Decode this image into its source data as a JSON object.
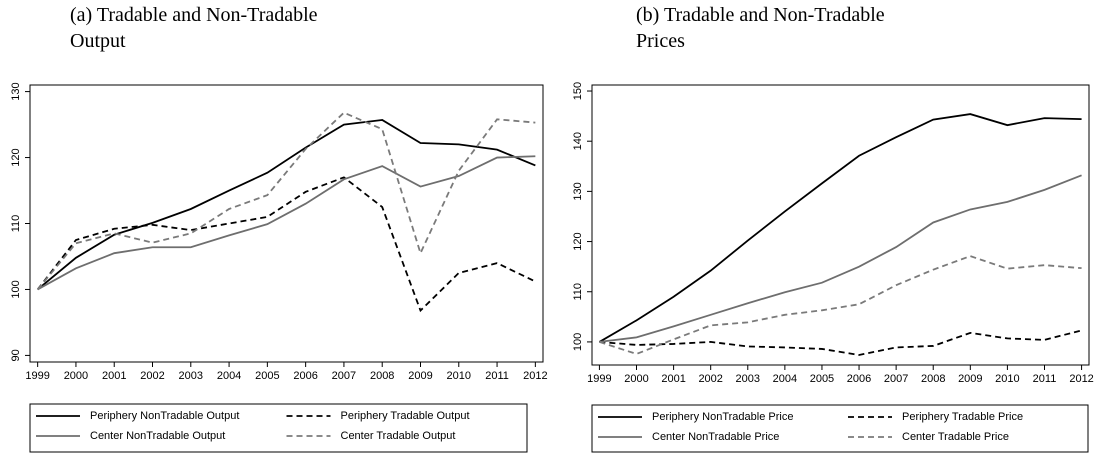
{
  "chart_data": [
    {
      "type": "line",
      "title": "(a) Tradable and Non-Tradable Output",
      "x": [
        1999,
        2000,
        2001,
        2002,
        2003,
        2004,
        2005,
        2006,
        2007,
        2008,
        2009,
        2010,
        2011,
        2012
      ],
      "xlim": [
        1998.8,
        2012.2
      ],
      "xticks": [
        1999,
        2000,
        2001,
        2002,
        2003,
        2004,
        2005,
        2006,
        2007,
        2008,
        2009,
        2010,
        2011,
        2012
      ],
      "ylim": [
        89,
        131
      ],
      "yticks": [
        90,
        100,
        110,
        120,
        130
      ],
      "series": [
        {
          "name": "Periphery NonTradable Output",
          "color": "#000000",
          "linestyle": "solid",
          "values": [
            100,
            104.8,
            108.3,
            110.1,
            112.2,
            115,
            117.7,
            121.5,
            125,
            125.7,
            122.2,
            122,
            121.2,
            118.8
          ]
        },
        {
          "name": "Periphery Tradable Output",
          "color": "#000000",
          "linestyle": "dashed",
          "values": [
            100,
            107.5,
            109.2,
            109.8,
            109,
            110,
            111,
            114.8,
            117,
            112.5,
            96.8,
            102.5,
            104,
            101.2
          ]
        },
        {
          "name": "Center NonTradable Output",
          "color": "#6e6e6e",
          "linestyle": "solid",
          "values": [
            100,
            103.2,
            105.5,
            106.4,
            106.4,
            108.2,
            109.9,
            113,
            116.7,
            118.7,
            115.6,
            117.2,
            120,
            120.2
          ]
        },
        {
          "name": "Center Tradable Output",
          "color": "#7a7a7a",
          "linestyle": "dashed",
          "values": [
            100,
            107,
            108.5,
            107.1,
            108.5,
            112.2,
            114.3,
            121.3,
            126.8,
            124.3,
            105.5,
            118,
            125.8,
            125.3
          ]
        }
      ]
    },
    {
      "type": "line",
      "title": "(b) Tradable and Non-Tradable Prices",
      "x": [
        1999,
        2000,
        2001,
        2002,
        2003,
        2004,
        2005,
        2006,
        2007,
        2008,
        2009,
        2010,
        2011,
        2012
      ],
      "xlim": [
        1998.8,
        2012.2
      ],
      "xticks": [
        1999,
        2000,
        2001,
        2002,
        2003,
        2004,
        2005,
        2006,
        2007,
        2008,
        2009,
        2010,
        2011,
        2012
      ],
      "ylim": [
        95.4,
        151.2
      ],
      "yticks": [
        100,
        110,
        120,
        130,
        140,
        150
      ],
      "series": [
        {
          "name": "Periphery NonTradable Price",
          "color": "#000000",
          "linestyle": "solid",
          "values": [
            100,
            104.3,
            109,
            114.2,
            120.2,
            126,
            131.6,
            137.1,
            140.8,
            144.3,
            145.4,
            143.2,
            144.6,
            144.4
          ]
        },
        {
          "name": "Periphery Tradable Price",
          "color": "#000000",
          "linestyle": "dashed",
          "values": [
            100,
            99.4,
            99.6,
            100,
            99.1,
            98.9,
            98.6,
            97.4,
            98.9,
            99.2,
            101.8,
            100.7,
            100.4,
            102.3
          ]
        },
        {
          "name": "Center NonTradable Price",
          "color": "#6e6e6e",
          "linestyle": "solid",
          "values": [
            100,
            100.9,
            103.1,
            105.4,
            107.7,
            109.9,
            111.8,
            115,
            118.9,
            123.8,
            126.4,
            127.9,
            130.3,
            133.2
          ]
        },
        {
          "name": "Center Tradable Price",
          "color": "#7a7a7a",
          "linestyle": "dashed",
          "values": [
            100,
            97.6,
            100.5,
            103.3,
            103.9,
            105.4,
            106.3,
            107.5,
            111.3,
            114.4,
            117.1,
            114.6,
            115.3,
            114.7
          ]
        }
      ]
    }
  ]
}
